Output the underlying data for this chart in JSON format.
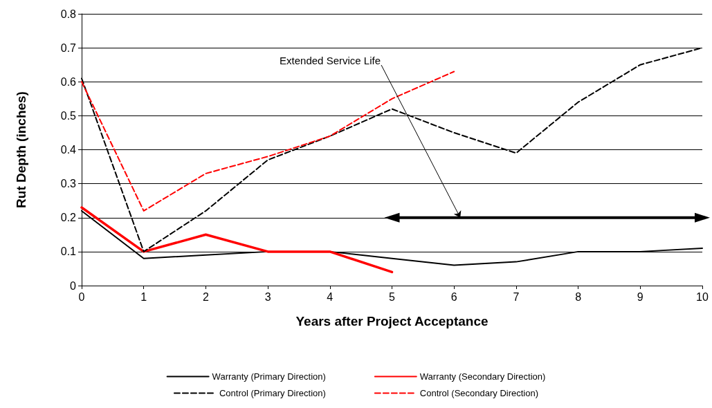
{
  "chart_data": {
    "type": "line",
    "xlabel": "Years after Project Acceptance",
    "ylabel": "Rut Depth (inches)",
    "x": [
      0,
      1,
      2,
      3,
      4,
      5,
      6,
      7,
      8,
      9,
      10
    ],
    "series": [
      {
        "name": "Warranty (Primary Direction)",
        "color": "#000000",
        "line_style": "solid",
        "values": [
          0.22,
          0.08,
          0.09,
          0.1,
          0.1,
          0.08,
          0.06,
          0.07,
          0.1,
          0.1,
          0.11
        ]
      },
      {
        "name": "Warranty (Secondary Direction)",
        "color": "#ff0000",
        "line_style": "solid",
        "values": [
          0.23,
          0.1,
          0.15,
          0.1,
          0.1,
          0.04,
          null,
          null,
          null,
          null,
          null
        ]
      },
      {
        "name": "Control (Primary Direction)",
        "color": "#000000",
        "line_style": "dashed",
        "values": [
          0.61,
          0.1,
          0.22,
          0.37,
          0.44,
          0.52,
          0.45,
          0.39,
          0.54,
          0.65,
          0.7
        ]
      },
      {
        "name": "Control (Secondary Direction)",
        "color": "#ff0000",
        "line_style": "dashed",
        "values": [
          0.6,
          0.22,
          0.33,
          0.38,
          0.44,
          0.55,
          0.63,
          null,
          null,
          null,
          null
        ]
      },
      {
        "color": "#000000",
        "line_style": "solid",
        "marker": "triangle",
        "x": [
          5,
          10
        ],
        "values": [
          0.2,
          0.2
        ]
      }
    ],
    "xlim": [
      0,
      10
    ],
    "xticks": [
      0,
      1,
      2,
      3,
      4,
      5,
      6,
      7,
      8,
      9,
      10
    ],
    "ylim": [
      0,
      0.8
    ],
    "yticks": [
      0,
      0.1,
      0.2,
      0.3,
      0.4,
      0.5,
      0.6,
      0.7,
      0.8
    ],
    "grid": "y",
    "legend": "bottom",
    "marker": "none",
    "annotations": [
      {
        "text": "Extended Service Life",
        "x": 6.1,
        "y": 0.2
      }
    ]
  }
}
